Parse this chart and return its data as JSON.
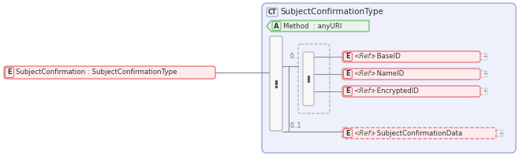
{
  "bg_color": "#ffffff",
  "elem_fill": "#ffebee",
  "elem_border": "#e57373",
  "attr_fill": "#e8f5e9",
  "attr_border": "#66bb6a",
  "ct_fill": "#eef0fb",
  "ct_border": "#9fa8da",
  "seq_fill": "#f5f5f5",
  "seq_border": "#aaaaaa",
  "dash_fill": "#eef0fb",
  "main_elem_label": "E",
  "main_elem_text": "SubjectConfirmation : SubjectConfirmationType",
  "ct_label": "CT",
  "ct_text": "SubjectConfirmationType",
  "attr_label": "A",
  "attr_text": "Method  : anyURI",
  "cardinality1": "0..1",
  "cardinality2": "0..1",
  "elem_labels": [
    "E",
    "E",
    "E",
    "E"
  ],
  "elem_refs": [
    "<Ref>",
    "<Ref>",
    "<Ref>",
    "<Ref>"
  ],
  "elem_types": [
    ": BaseID",
    ": NameID",
    ": EncryptedID",
    ": SubjectConfirmationData"
  ],
  "elem_dashed": [
    false,
    false,
    false,
    true
  ]
}
